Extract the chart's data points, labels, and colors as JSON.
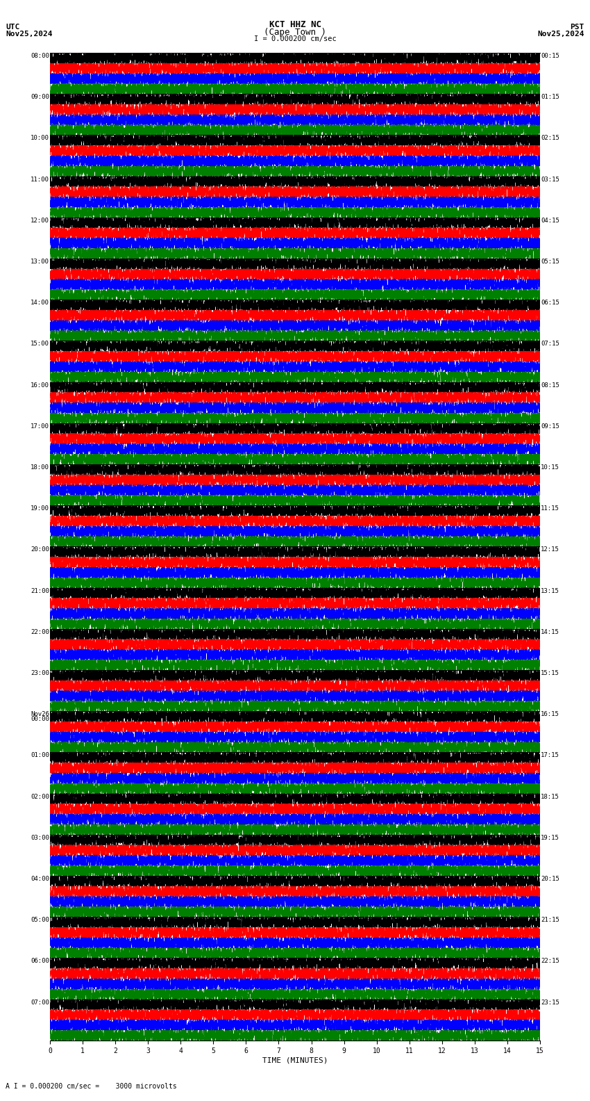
{
  "title_line1": "KCT HHZ NC",
  "title_line2": "(Cape Town )",
  "title_scale": "I = 0.000200 cm/sec",
  "label_utc": "UTC",
  "label_pst": "PST",
  "date_left": "Nov25,2024",
  "date_right": "Nov25,2024",
  "xlabel": "TIME (MINUTES)",
  "bottom_note": "A I = 0.000200 cm/sec =    3000 microvolts",
  "left_times": [
    "08:00",
    "09:00",
    "10:00",
    "11:00",
    "12:00",
    "13:00",
    "14:00",
    "15:00",
    "16:00",
    "17:00",
    "18:00",
    "19:00",
    "20:00",
    "21:00",
    "22:00",
    "23:00",
    "Nov26\n00:00",
    "01:00",
    "02:00",
    "03:00",
    "04:00",
    "05:00",
    "06:00",
    "07:00"
  ],
  "right_times": [
    "00:15",
    "01:15",
    "02:15",
    "03:15",
    "04:15",
    "05:15",
    "06:15",
    "07:15",
    "08:15",
    "09:15",
    "10:15",
    "11:15",
    "12:15",
    "13:15",
    "14:15",
    "15:15",
    "16:15",
    "17:15",
    "18:15",
    "19:15",
    "20:15",
    "21:15",
    "22:15",
    "23:15"
  ],
  "n_rows": 24,
  "n_traces_per_row": 4,
  "colors": [
    "black",
    "red",
    "blue",
    "green"
  ],
  "bg_color": "white",
  "fig_width": 8.5,
  "fig_height": 15.84,
  "x_min": 0,
  "x_max": 15,
  "x_ticks": [
    0,
    1,
    2,
    3,
    4,
    5,
    6,
    7,
    8,
    9,
    10,
    11,
    12,
    13,
    14,
    15
  ],
  "noise_amplitude": 0.45,
  "n_points": 9000
}
